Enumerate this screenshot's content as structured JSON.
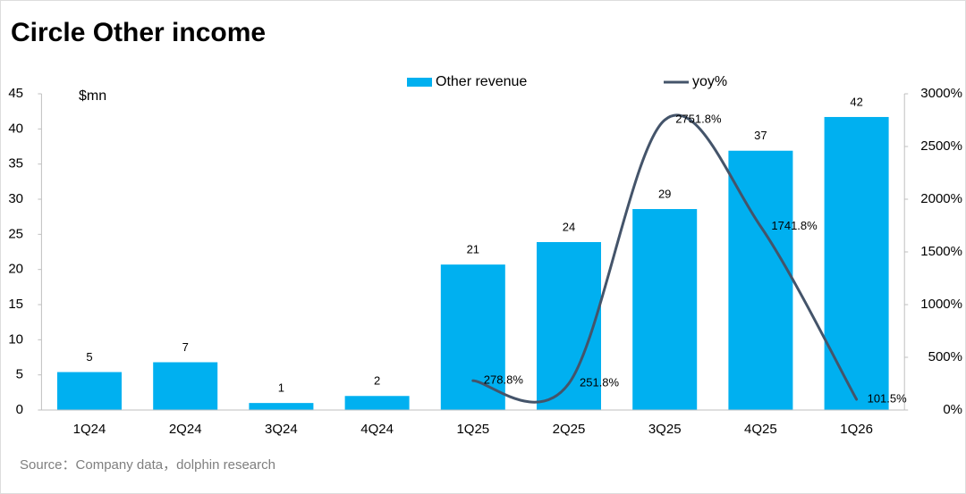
{
  "chart_data": {
    "type": "bar_line",
    "title": "Circle Other income",
    "y_label": "$mn",
    "source": "Source：Company data，dolphin research",
    "categories": [
      "1Q24",
      "2Q24",
      "3Q24",
      "4Q24",
      "1Q25",
      "2Q25",
      "3Q25",
      "4Q25",
      "1Q26"
    ],
    "series": [
      {
        "name": "Other revenue",
        "type": "bar",
        "color": "#00b0f0",
        "values": [
          5.4,
          6.8,
          1.0,
          2.0,
          20.7,
          23.9,
          28.6,
          36.9,
          41.7
        ],
        "value_labels": [
          "5",
          "7",
          "1",
          "2",
          "21",
          "24",
          "29",
          "37",
          "42"
        ]
      },
      {
        "name": "yoy%",
        "type": "line",
        "axis": "y2",
        "color": "#44546a",
        "smooth": true,
        "values": [
          null,
          null,
          null,
          null,
          278.8,
          251.8,
          2751.8,
          1741.8,
          101.5
        ],
        "value_labels": [
          null,
          null,
          null,
          null,
          "278.8%",
          "251.8%",
          "2751.8%",
          "1741.8%",
          "101.5%"
        ]
      }
    ],
    "ylim": [
      0,
      45
    ],
    "yticks": [
      0,
      5,
      10,
      15,
      20,
      25,
      30,
      35,
      40,
      45
    ],
    "y2lim": [
      0,
      3000
    ],
    "y2ticks": [
      {
        "value": 0,
        "label": "0%"
      },
      {
        "value": 500,
        "label": "500%"
      },
      {
        "value": 1000,
        "label": "1000%"
      },
      {
        "value": 1500,
        "label": "1500%"
      },
      {
        "value": 2000,
        "label": "2000%"
      },
      {
        "value": 2500,
        "label": "2500%"
      },
      {
        "value": 3000,
        "label": "3000%"
      }
    ],
    "legend": "top"
  }
}
